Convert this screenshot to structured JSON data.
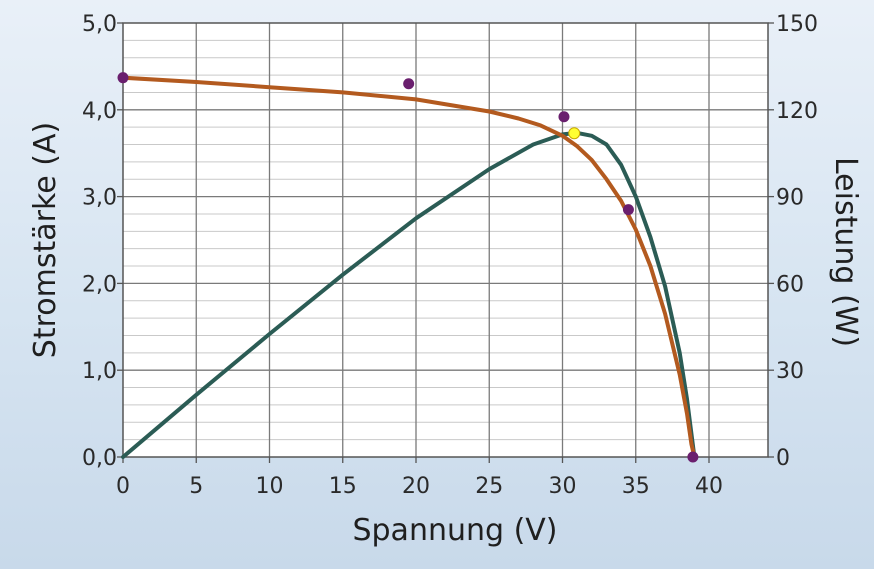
{
  "chart_data": {
    "type": "line",
    "xlabel": "Spannung (V)",
    "ylabel": "Stromstärke (A)",
    "y2label": "Leistung (W)",
    "xlim": [
      0,
      44
    ],
    "ylim": [
      0,
      5
    ],
    "y2lim": [
      0,
      150
    ],
    "x_ticks": [
      "0",
      "5",
      "10",
      "15",
      "20",
      "25",
      "30",
      "35",
      "40"
    ],
    "y_ticks": [
      "0,0",
      "1,0",
      "2,0",
      "3,0",
      "4,0",
      "5,0"
    ],
    "y2_ticks": [
      "0",
      "30",
      "60",
      "90",
      "120",
      "150"
    ],
    "grid": true,
    "colors": {
      "current": "#b35a1f",
      "power": "#2b5c55",
      "markers": "#6a1f6e",
      "mpp": "#ffff33"
    },
    "series": [
      {
        "axis": "left",
        "x": [
          0,
          5,
          10,
          15,
          20,
          25,
          27,
          28.5,
          30,
          31,
          32,
          33,
          34,
          35,
          36,
          37,
          38,
          38.5,
          38.8,
          39
        ],
        "values": [
          4.37,
          4.32,
          4.26,
          4.2,
          4.12,
          3.98,
          3.9,
          3.82,
          3.7,
          3.58,
          3.42,
          3.2,
          2.95,
          2.62,
          2.2,
          1.65,
          0.95,
          0.5,
          0.15,
          0
        ]
      },
      {
        "axis": "right",
        "x": [
          0,
          5,
          10,
          15,
          20,
          25,
          28,
          30,
          31,
          32,
          33,
          34,
          35,
          36,
          37,
          38,
          38.5,
          39
        ],
        "values": [
          0,
          21.5,
          42.5,
          63,
          82.5,
          99.5,
          108,
          111.5,
          112,
          111,
          108,
          101,
          90,
          76,
          59,
          36,
          20,
          0
        ]
      }
    ],
    "points": [
      {
        "x": 0,
        "y": 4.37
      },
      {
        "x": 19.5,
        "y": 4.3
      },
      {
        "x": 30.1,
        "y": 3.92
      },
      {
        "x": 34.5,
        "y": 2.85
      },
      {
        "x": 38.9,
        "y": 0
      }
    ],
    "mpp_point": {
      "x": 30.8,
      "y": 3.73
    }
  }
}
